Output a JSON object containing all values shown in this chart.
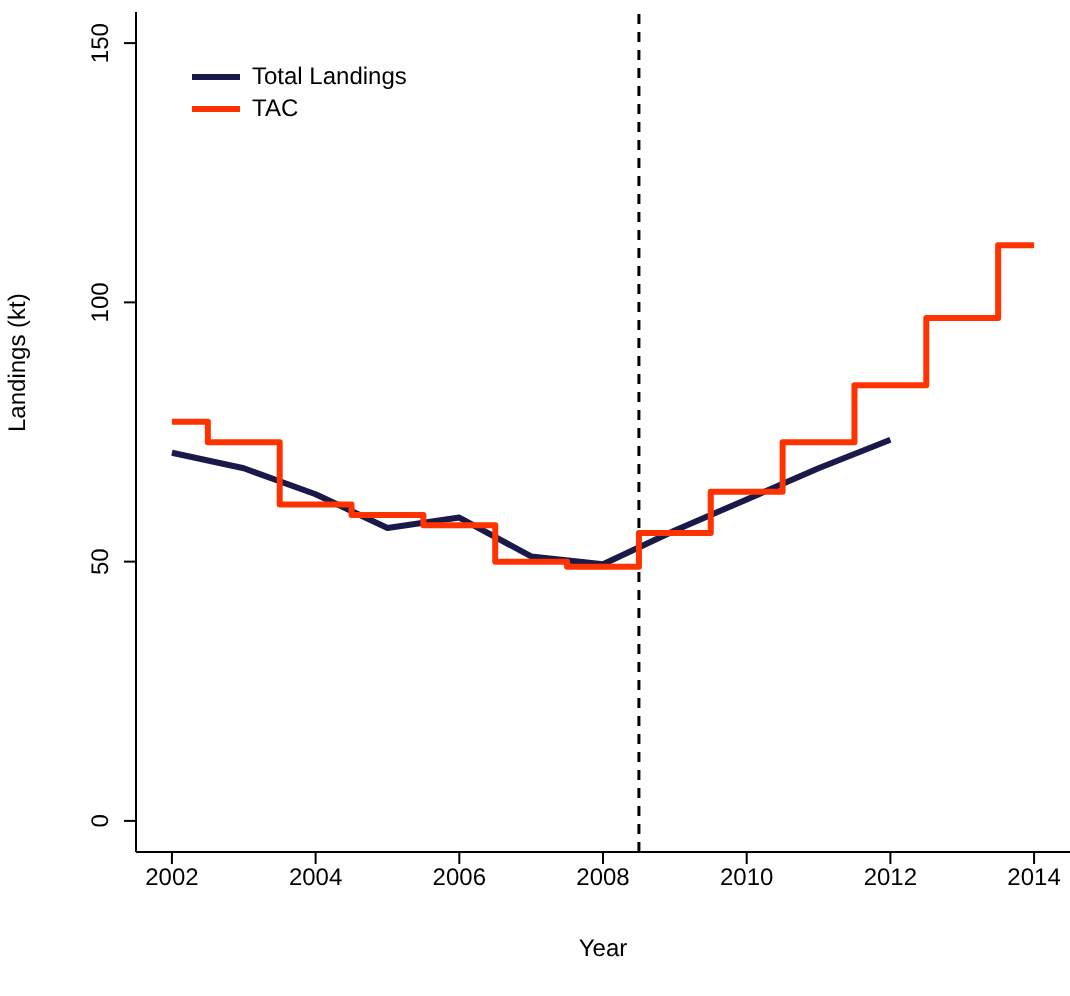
{
  "chart_data": {
    "type": "line",
    "xlabel": "Year",
    "ylabel": "Landings (kt)",
    "xlim": [
      2001.5,
      2014.5
    ],
    "ylim": [
      -6,
      156
    ],
    "xticks": [
      2002,
      2004,
      2006,
      2008,
      2010,
      2012,
      2014
    ],
    "yticks": [
      0,
      50,
      100,
      150
    ],
    "grid": false,
    "legend": "top left",
    "marker": "none",
    "line_style": "solid",
    "series": [
      {
        "name": "Total Landings",
        "color": "#1a1a4a",
        "x": [
          2002,
          2003,
          2004,
          2005,
          2006,
          2007,
          2008,
          2009,
          2010,
          2011,
          2012
        ],
        "values": [
          71,
          68,
          63,
          56.5,
          58.5,
          51,
          49.5,
          56,
          62,
          68,
          73.5
        ]
      },
      {
        "name": "TAC",
        "color": "#ff3300",
        "type": "step",
        "x": [
          2002,
          2003,
          2004,
          2005,
          2006,
          2007,
          2008,
          2009,
          2010,
          2011,
          2012,
          2013,
          2014
        ],
        "values": [
          77,
          73,
          61,
          59,
          57,
          50,
          49,
          55.5,
          63.5,
          73,
          84,
          97,
          111
        ]
      }
    ],
    "ref_lines": [
      {
        "axis": "x",
        "value": 2008.5,
        "color": "#000000",
        "line_style": "dashed"
      }
    ]
  }
}
